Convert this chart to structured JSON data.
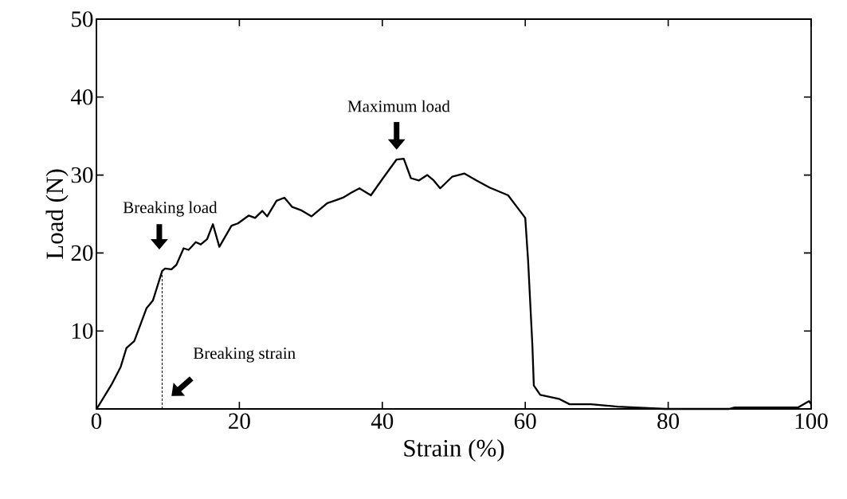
{
  "chart_data": {
    "type": "line",
    "xlabel": "Strain (%)",
    "ylabel": "Load (N)",
    "xlim": [
      0,
      100
    ],
    "ylim": [
      0,
      50
    ],
    "xticks": [
      0,
      20,
      40,
      60,
      80,
      100
    ],
    "yticks": [
      10,
      20,
      30,
      40,
      50
    ],
    "series": [
      {
        "color": "#000000",
        "line_style": "solid",
        "x": [
          0.1,
          2.1,
          3.4,
          4.2,
          5.3,
          7.0,
          7.9,
          9.2,
          9.6,
          10.5,
          11.2,
          12.2,
          12.9,
          13.9,
          14.6,
          15.5,
          16.3,
          17.2,
          18.9,
          19.8,
          21.3,
          22.2,
          23.2,
          23.9,
          25.2,
          26.3,
          27.4,
          28.6,
          30.1,
          32.3,
          33.6,
          34.5,
          35.6,
          36.8,
          38.4,
          40.1,
          42.0,
          43.0,
          44.0,
          45.1,
          46.3,
          47.2,
          48.1,
          49.8,
          51.5,
          53.2,
          55.0,
          57.6,
          60.0,
          60.4,
          61.0,
          61.2,
          62.1,
          64.7,
          66.2,
          69.2,
          72.9,
          79.6,
          88.5,
          89.3,
          98.2,
          99.7,
          100
        ],
        "values": [
          0.1,
          3.1,
          5.4,
          7.8,
          8.7,
          12.9,
          13.9,
          17.7,
          18.0,
          17.9,
          18.5,
          20.6,
          20.4,
          21.4,
          21.1,
          21.8,
          23.7,
          20.8,
          23.5,
          23.8,
          24.8,
          24.5,
          25.4,
          24.7,
          26.7,
          27.1,
          25.9,
          25.5,
          24.7,
          26.4,
          26.8,
          27.1,
          27.7,
          28.3,
          27.4,
          29.6,
          32.0,
          32.1,
          29.6,
          29.3,
          30.0,
          29.3,
          28.3,
          29.8,
          30.2,
          29.3,
          28.4,
          27.4,
          24.5,
          19.0,
          8.1,
          3.0,
          1.8,
          1.3,
          0.6,
          0.6,
          0.3,
          0.0,
          0.0,
          0.2,
          0.2,
          1.0,
          0.6
        ]
      },
      {
        "color": "#000000",
        "line_style": "dashed",
        "x": [
          9.2,
          9.2
        ],
        "values": [
          0,
          17.7
        ]
      }
    ],
    "annotations": [
      "Breaking load",
      "Maximum load",
      "Breaking strain"
    ]
  }
}
